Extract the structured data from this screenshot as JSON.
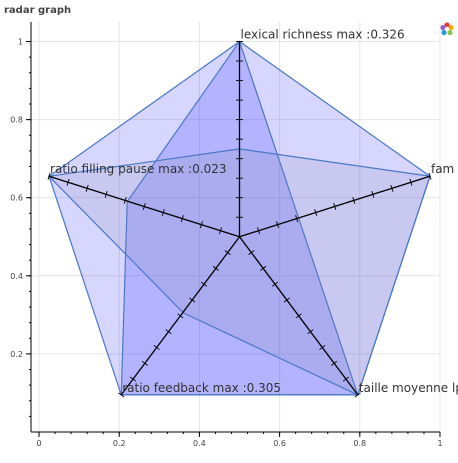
{
  "title": "radar graph",
  "toolbar": {
    "logo_icon": "bokeh-logo-icon"
  },
  "chart_data": {
    "type": "radar",
    "title": "radar graph",
    "xlim": [
      -0.02,
      1.0
    ],
    "ylim": [
      0.0,
      1.05
    ],
    "x_ticks": [
      0,
      0.2,
      0.4,
      0.6,
      0.8,
      1
    ],
    "y_ticks": [
      0.2,
      0.4,
      0.6,
      0.8,
      1
    ],
    "grid": true,
    "center": [
      0.5,
      0.5
    ],
    "axes": [
      {
        "label": "lexical richness max :0.326",
        "end": [
          0.5,
          1.0
        ]
      },
      {
        "label": "fam",
        "end": [
          0.975,
          0.655
        ]
      },
      {
        "label": "taille moyenne lp",
        "end": [
          0.795,
          0.095
        ]
      },
      {
        "label": "ratio feedback max :0.305",
        "end": [
          0.205,
          0.095
        ]
      },
      {
        "label": "ratio filling pause max :0.023",
        "end": [
          0.025,
          0.655
        ]
      }
    ],
    "series": [
      {
        "color": "#0000ff",
        "points": [
          [
            0.5,
            1.0
          ],
          [
            0.975,
            0.655
          ],
          [
            0.795,
            0.095
          ],
          [
            0.205,
            0.095
          ],
          [
            0.025,
            0.655
          ]
        ]
      },
      {
        "color": "#0000ff",
        "points": [
          [
            0.5,
            1.0
          ],
          [
            0.795,
            0.095
          ],
          [
            0.205,
            0.095
          ],
          [
            0.22,
            0.59
          ]
        ]
      },
      {
        "color": "#8080a0",
        "points": [
          [
            0.5,
            0.725
          ],
          [
            0.975,
            0.655
          ],
          [
            0.795,
            0.095
          ],
          [
            0.36,
            0.305
          ],
          [
            0.025,
            0.655
          ]
        ]
      }
    ],
    "ticks_per_spoke": 10
  }
}
